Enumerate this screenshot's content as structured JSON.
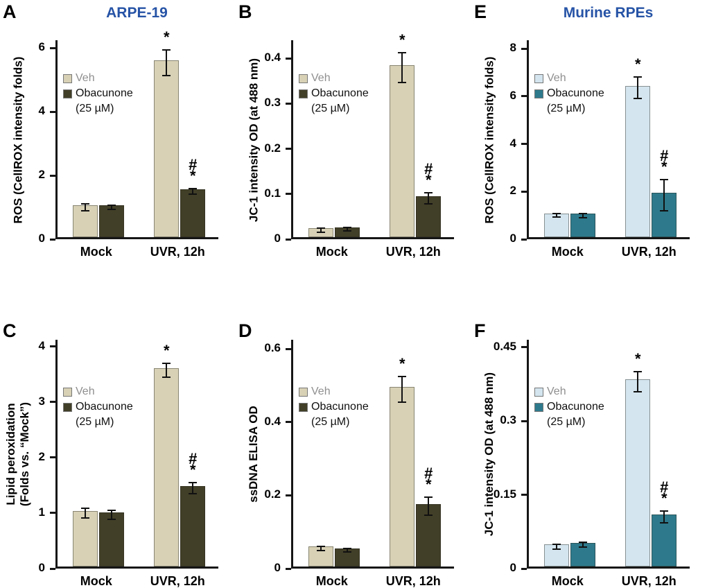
{
  "chart_data": [
    {
      "type": "bar",
      "panel": "A",
      "row": 0,
      "title": "ARPE-19",
      "title_color": "#2653a6",
      "ylabel": "ROS (CellROX intensity folds)",
      "ylim": [
        0,
        6.25
      ],
      "ytick_values": [
        0,
        2,
        4,
        6
      ],
      "yticks": [
        "0",
        "2",
        "4",
        "6"
      ],
      "categories": [
        "Mock",
        "UVR, 12h"
      ],
      "legend": [
        {
          "label": "Veh",
          "color": "#d8d1b6",
          "text_color": "#8f8f8f"
        },
        {
          "label": "Obacunone",
          "sublabel": "(25 µM)",
          "color": "#423f28",
          "text_color": "#101010"
        }
      ],
      "series": [
        {
          "name": "Veh",
          "color": "#d8d1b6",
          "values": [
            1.0,
            5.55
          ],
          "errors": [
            0.1,
            0.4
          ],
          "sig": [
            "",
            "*"
          ]
        },
        {
          "name": "Obacunone (25 µM)",
          "color": "#423f28",
          "values": [
            1.0,
            1.5
          ],
          "errors": [
            0.06,
            0.08
          ],
          "sig": [
            "",
            "#*"
          ]
        }
      ]
    },
    {
      "type": "bar",
      "panel": "B",
      "row": 0,
      "title": "",
      "title_color": "#2653a6",
      "ylabel": "JC-1 intensity OD (at 488 nm)",
      "ylim": [
        0,
        0.44
      ],
      "ytick_values": [
        0,
        0.1,
        0.2,
        0.3,
        0.4
      ],
      "yticks": [
        "0",
        "0.1",
        "0.2",
        "0.3",
        "0.4"
      ],
      "categories": [
        "Mock",
        "UVR, 12h"
      ],
      "legend": [
        {
          "label": "Veh",
          "color": "#d8d1b6",
          "text_color": "#8f8f8f"
        },
        {
          "label": "Obacunone",
          "sublabel": "(25 µM)",
          "color": "#423f28",
          "text_color": "#101010"
        }
      ],
      "series": [
        {
          "name": "Veh",
          "color": "#d8d1b6",
          "values": [
            0.02,
            0.38
          ],
          "errors": [
            0.004,
            0.033
          ],
          "sig": [
            "",
            "*"
          ]
        },
        {
          "name": "Obacunone (25 µM)",
          "color": "#423f28",
          "values": [
            0.022,
            0.09
          ],
          "errors": [
            0.004,
            0.012
          ],
          "sig": [
            "",
            "#*"
          ]
        }
      ]
    },
    {
      "type": "bar",
      "panel": "E",
      "row": 0,
      "title": "Murine RPEs",
      "title_color": "#2653a6",
      "ylabel": "ROS (CellROX intensity folds)",
      "ylim": [
        0,
        8.35
      ],
      "ytick_values": [
        0,
        2,
        4,
        6,
        8
      ],
      "yticks": [
        "0",
        "2",
        "4",
        "6",
        "8"
      ],
      "categories": [
        "Mock",
        "UVR, 12h"
      ],
      "legend": [
        {
          "label": "Veh",
          "color": "#d4e5ef",
          "text_color": "#8f8f8f"
        },
        {
          "label": "Obacunone",
          "sublabel": "(25 µM)",
          "color": "#2e7a8c",
          "text_color": "#101010"
        }
      ],
      "series": [
        {
          "name": "Veh",
          "color": "#d4e5ef",
          "values": [
            1.0,
            6.35
          ],
          "errors": [
            0.08,
            0.45
          ],
          "sig": [
            "",
            "*"
          ]
        },
        {
          "name": "Obacunone (25 µM)",
          "color": "#2e7a8c",
          "values": [
            1.0,
            1.85
          ],
          "errors": [
            0.09,
            0.65
          ],
          "sig": [
            "",
            "#*"
          ]
        }
      ]
    },
    {
      "type": "bar",
      "panel": "C",
      "row": 1,
      "title": "",
      "title_color": "#2653a6",
      "ylabel": "Lipid peroxidation\n(Folds vs. “Mock”)",
      "ylim": [
        0,
        4.12
      ],
      "ytick_values": [
        0,
        1,
        2,
        3,
        4
      ],
      "yticks": [
        "0",
        "1",
        "2",
        "3",
        "4"
      ],
      "categories": [
        "Mock",
        "UVR, 12h"
      ],
      "legend": [
        {
          "label": "Veh",
          "color": "#d8d1b6",
          "text_color": "#8f8f8f"
        },
        {
          "label": "Obacunone",
          "sublabel": "(25 µM)",
          "color": "#423f28",
          "text_color": "#101010"
        }
      ],
      "series": [
        {
          "name": "Veh",
          "color": "#d8d1b6",
          "values": [
            1.0,
            3.57
          ],
          "errors": [
            0.09,
            0.13
          ],
          "sig": [
            "",
            "*"
          ]
        },
        {
          "name": "Obacunone (25 µM)",
          "color": "#423f28",
          "values": [
            0.97,
            1.45
          ],
          "errors": [
            0.08,
            0.1
          ],
          "sig": [
            "",
            "#*"
          ]
        }
      ]
    },
    {
      "type": "bar",
      "panel": "D",
      "row": 1,
      "title": "",
      "title_color": "#2653a6",
      "ylabel": "ssDNA ELISA OD",
      "ylim": [
        0,
        0.625
      ],
      "ytick_values": [
        0,
        0.2,
        0.4,
        0.6
      ],
      "yticks": [
        "0",
        "0.2",
        "0.4",
        "0.6"
      ],
      "categories": [
        "Mock",
        "UVR, 12h"
      ],
      "legend": [
        {
          "label": "Veh",
          "color": "#d8d1b6",
          "text_color": "#8f8f8f"
        },
        {
          "label": "Obacunone",
          "sublabel": "(25 µM)",
          "color": "#423f28",
          "text_color": "#101010"
        }
      ],
      "series": [
        {
          "name": "Veh",
          "color": "#d8d1b6",
          "values": [
            0.055,
            0.49
          ],
          "errors": [
            0.006,
            0.035
          ],
          "sig": [
            "",
            "*"
          ]
        },
        {
          "name": "Obacunone (25 µM)",
          "color": "#423f28",
          "values": [
            0.05,
            0.17
          ],
          "errors": [
            0.005,
            0.025
          ],
          "sig": [
            "",
            "#*"
          ]
        }
      ]
    },
    {
      "type": "bar",
      "panel": "F",
      "row": 1,
      "title": "",
      "title_color": "#2653a6",
      "ylabel": "JC-1 intensity OD (at 488 nm)",
      "ylim": [
        0,
        0.465
      ],
      "ytick_values": [
        0,
        0.15,
        0.3,
        0.45
      ],
      "yticks": [
        "0",
        "0.15",
        "0.3",
        "0.45"
      ],
      "categories": [
        "Mock",
        "UVR, 12h"
      ],
      "legend": [
        {
          "label": "Veh",
          "color": "#d4e5ef",
          "text_color": "#8f8f8f"
        },
        {
          "label": "Obacunone",
          "sublabel": "(25 µM)",
          "color": "#2e7a8c",
          "text_color": "#101010"
        }
      ],
      "series": [
        {
          "name": "Veh",
          "color": "#d4e5ef",
          "values": [
            0.045,
            0.38
          ],
          "errors": [
            0.005,
            0.02
          ],
          "sig": [
            "",
            "*"
          ]
        },
        {
          "name": "Obacunone (25 µM)",
          "color": "#2e7a8c",
          "values": [
            0.048,
            0.105
          ],
          "errors": [
            0.005,
            0.012
          ],
          "sig": [
            "",
            "#*"
          ]
        }
      ]
    }
  ]
}
